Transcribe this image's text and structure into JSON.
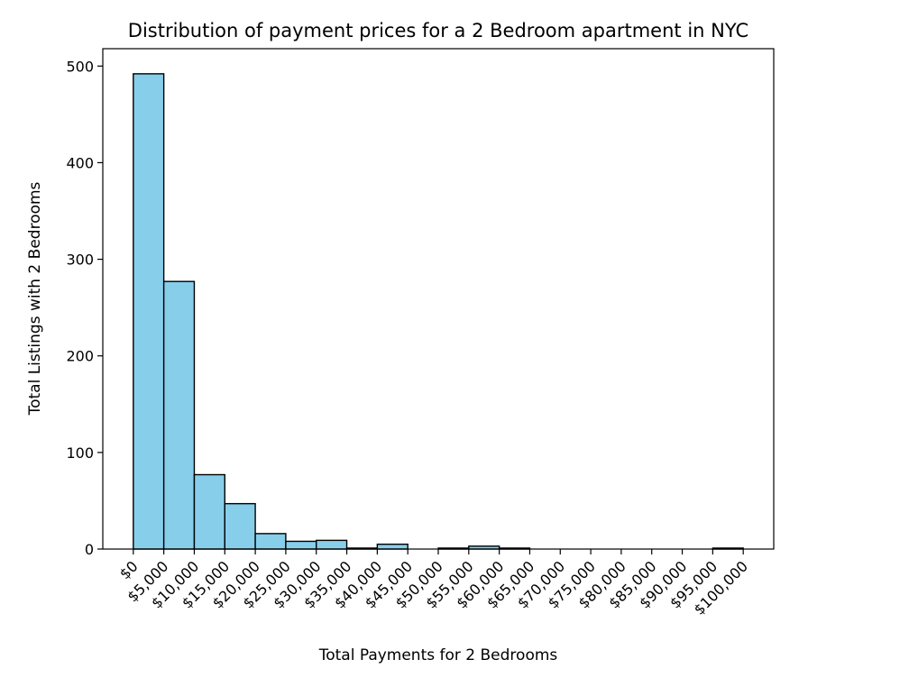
{
  "chart_data": {
    "type": "bar",
    "title": "Distribution of payment prices for a 2 Bedroom apartment in NYC",
    "xlabel": "Total Payments for 2 Bedrooms",
    "ylabel": "Total Listings with 2 Bedrooms",
    "bin_width": 5000,
    "bin_starts": [
      0,
      5000,
      10000,
      15000,
      20000,
      25000,
      30000,
      35000,
      40000,
      45000,
      50000,
      55000,
      60000,
      65000,
      70000,
      75000,
      80000,
      85000,
      90000,
      95000
    ],
    "values": [
      492,
      277,
      77,
      47,
      16,
      8,
      9,
      1,
      5,
      0,
      1,
      3,
      1,
      0,
      0,
      0,
      0,
      0,
      0,
      1
    ],
    "xlim": [
      -5000,
      105000
    ],
    "ylim": [
      0,
      518
    ],
    "x_ticks": [
      0,
      5000,
      10000,
      15000,
      20000,
      25000,
      30000,
      35000,
      40000,
      45000,
      50000,
      55000,
      60000,
      65000,
      70000,
      75000,
      80000,
      85000,
      90000,
      95000,
      100000
    ],
    "x_tick_labels": [
      "$0",
      "$5,000",
      "$10,000",
      "$15,000",
      "$20,000",
      "$25,000",
      "$30,000",
      "$35,000",
      "$40,000",
      "$45,000",
      "$50,000",
      "$55,000",
      "$60,000",
      "$65,000",
      "$70,000",
      "$75,000",
      "$80,000",
      "$85,000",
      "$90,000",
      "$95,000",
      "$100,000"
    ],
    "y_ticks": [
      0,
      100,
      200,
      300,
      400,
      500
    ],
    "y_tick_labels": [
      "0",
      "100",
      "200",
      "300",
      "400",
      "500"
    ],
    "grid": false,
    "bar_color": "#87ceeb",
    "edge_color": "#000000"
  }
}
